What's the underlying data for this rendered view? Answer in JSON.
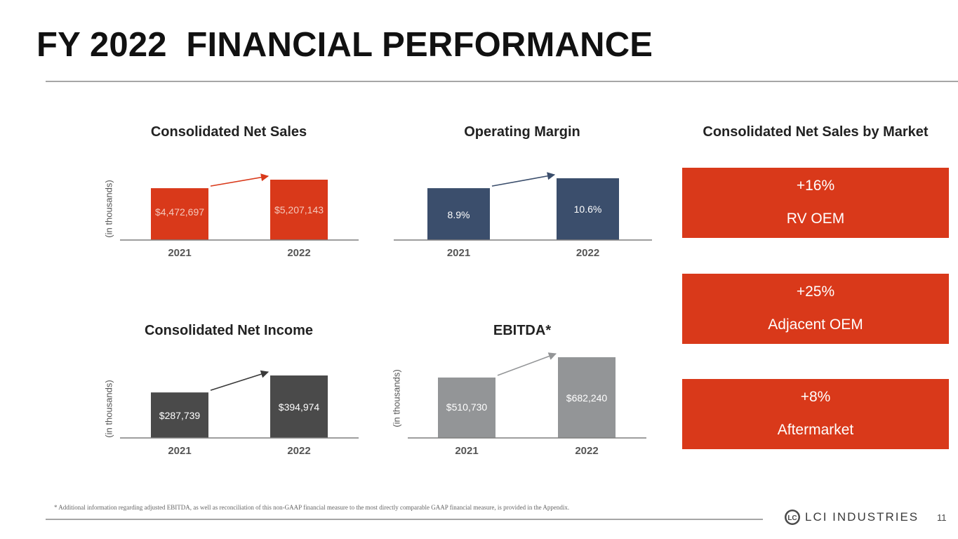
{
  "slide": {
    "title": "FY 2022  FINANCIAL PERFORMANCE",
    "footnote": "* Additional information regarding adjusted EBITDA, as well as reconciliation of this non-GAAP financial measure to the most directly comparable GAAP financial measure, is provided in the Appendix.",
    "page_number": "11",
    "logo_text": "LCI INDUSTRIES",
    "logo_mark": "LC"
  },
  "chart_data": [
    {
      "id": "net_sales",
      "type": "bar",
      "title": "Consolidated Net Sales",
      "ylabel": "(in thousands)",
      "categories": [
        "2021",
        "2022"
      ],
      "values": [
        4472697,
        5207143
      ],
      "labels": [
        "$4,472,697",
        "$5,207,143"
      ],
      "color": "#d9391a",
      "label_color": "#f4c9bd",
      "arrow_color": "#d9391a"
    },
    {
      "id": "operating_margin",
      "type": "bar",
      "title": "Operating Margin",
      "ylabel": "",
      "categories": [
        "2021",
        "2022"
      ],
      "values": [
        8.9,
        10.6
      ],
      "labels": [
        "8.9%",
        "10.6%"
      ],
      "color": "#3b4e6c",
      "label_color": "#ffffff",
      "arrow_color": "#3b4e6c"
    },
    {
      "id": "net_income",
      "type": "bar",
      "title": "Consolidated Net Income",
      "ylabel": "(in thousands)",
      "categories": [
        "2021",
        "2022"
      ],
      "values": [
        287739,
        394974
      ],
      "labels": [
        "$287,739",
        "$394,974"
      ],
      "color": "#4a4a4a",
      "label_color": "#ffffff",
      "arrow_color": "#3a3a3a"
    },
    {
      "id": "ebitda",
      "type": "bar",
      "title": "EBITDA*",
      "ylabel": "(in thousands)",
      "categories": [
        "2021",
        "2022"
      ],
      "values": [
        510730,
        682240
      ],
      "labels": [
        "$510,730",
        "$682,240"
      ],
      "color": "#939597",
      "label_color": "#ffffff",
      "arrow_color": "#939597"
    }
  ],
  "markets": {
    "title": "Consolidated Net Sales by Market",
    "color": "#d9391a",
    "items": [
      {
        "change": "+16%",
        "name": "RV OEM"
      },
      {
        "change": "+25%",
        "name": "Adjacent OEM"
      },
      {
        "change": "+8%",
        "name": "Aftermarket"
      }
    ]
  }
}
